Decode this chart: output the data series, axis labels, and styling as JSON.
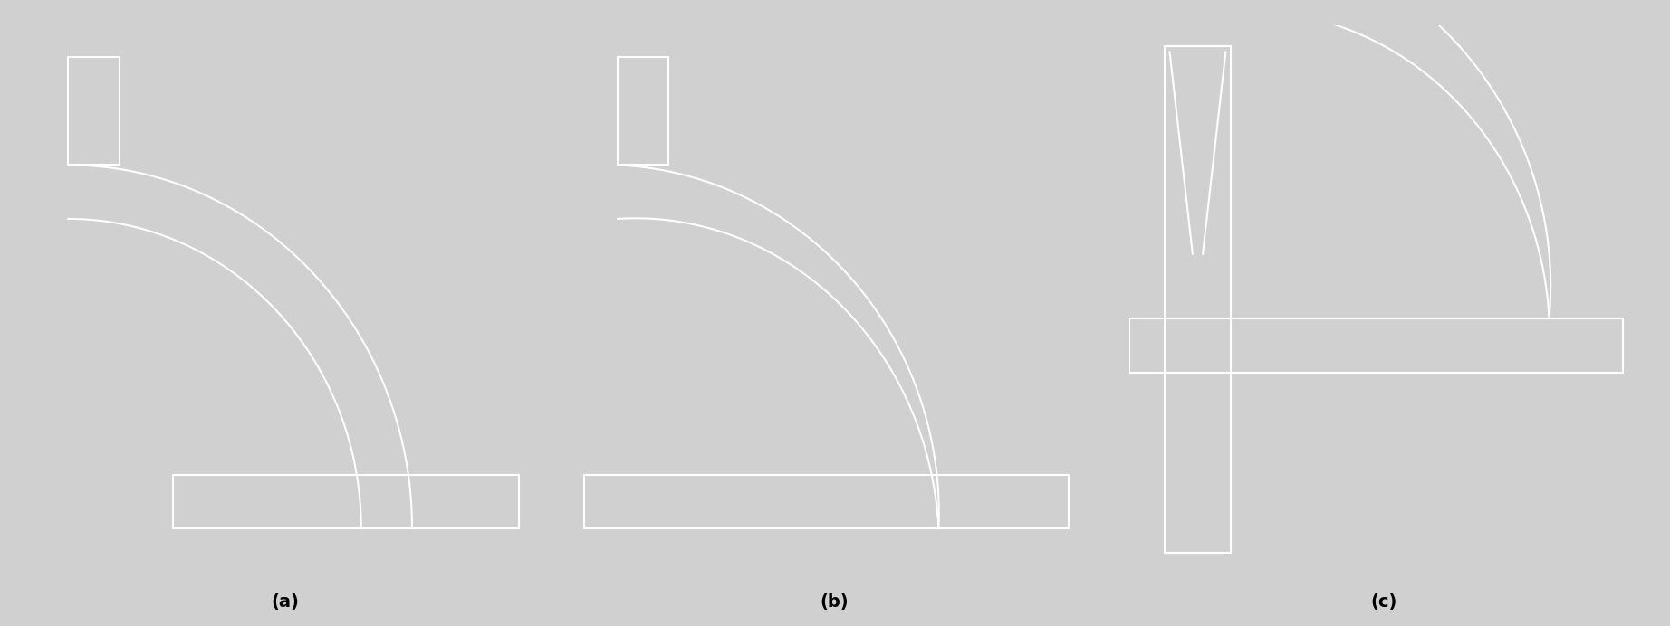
{
  "fig_width": 18.44,
  "fig_height": 6.92,
  "dpi": 100,
  "bg_color": "#000000",
  "fig_bg_color": "#d0d0d0",
  "line_color": "#ffffff",
  "line_width": 1.5,
  "label_color": "#000000",
  "labels": [
    "(a)",
    "(b)",
    "(c)"
  ],
  "label_fontsize": 14,
  "label_fontweight": "bold"
}
